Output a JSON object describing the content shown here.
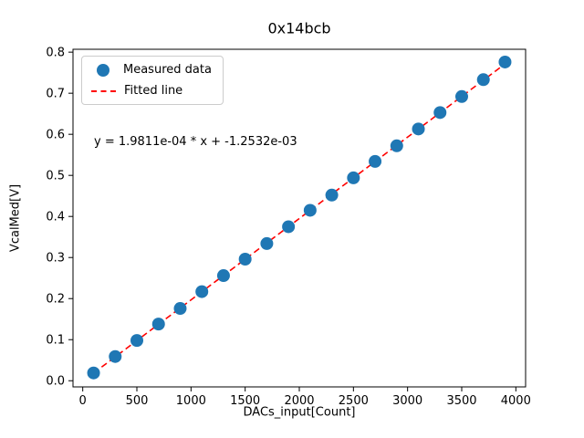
{
  "chart_data": {
    "type": "scatter",
    "title": "0x14bcb",
    "xlabel": "DACs_input[Count]",
    "ylabel": "VcalMed[V]",
    "annotation": "y = 1.9811e-04 * x + -1.2532e-03",
    "xlim": [
      -90,
      4090
    ],
    "ylim": [
      -0.015,
      0.807
    ],
    "x_ticks": [
      0,
      500,
      1000,
      1500,
      2000,
      2500,
      3000,
      3500,
      4000
    ],
    "y_ticks": [
      0.0,
      0.1,
      0.2,
      0.3,
      0.4,
      0.5,
      0.6,
      0.7,
      0.8
    ],
    "grid": false,
    "legend_position": "upper-left",
    "fit": {
      "slope": 0.00019811,
      "intercept": -0.0012532
    },
    "series": [
      {
        "name": "Measured data",
        "kind": "scatter",
        "color": "#1f77b4",
        "x": [
          100,
          300,
          500,
          700,
          900,
          1100,
          1300,
          1500,
          1700,
          1900,
          2100,
          2300,
          2500,
          2700,
          2900,
          3100,
          3300,
          3500,
          3700,
          3900
        ],
        "y": [
          0.019,
          0.059,
          0.098,
          0.138,
          0.176,
          0.217,
          0.256,
          0.296,
          0.334,
          0.375,
          0.415,
          0.452,
          0.494,
          0.534,
          0.572,
          0.613,
          0.653,
          0.692,
          0.733,
          0.776
        ]
      },
      {
        "name": "Fitted line",
        "kind": "line",
        "style": "dashed",
        "color": "#ff0000"
      }
    ]
  }
}
